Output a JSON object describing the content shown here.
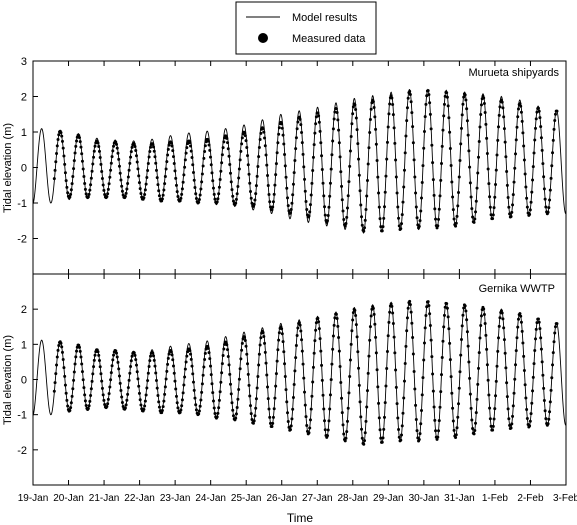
{
  "legend": {
    "model_label": "Model results",
    "measured_label": "Measured data"
  },
  "xlabel": "Time",
  "colors": {
    "line": "#000000",
    "marker": "#000000",
    "background": "#ffffff"
  },
  "chart_data": [
    {
      "type": "line",
      "annotation": "Murueta shipyards",
      "xlabel": "Time",
      "ylabel": "Tidal elevation (m)",
      "ylim": [
        -3,
        3
      ],
      "yticks": [
        -2,
        -1,
        0,
        1,
        2,
        3
      ],
      "xlim": [
        "19-Jan",
        "3-Feb"
      ],
      "xticks": [
        "19-Jan",
        "20-Jan",
        "21-Jan",
        "22-Jan",
        "23-Jan",
        "24-Jan",
        "25-Jan",
        "26-Jan",
        "27-Jan",
        "28-Jan",
        "29-Jan",
        "30-Jan",
        "31-Jan",
        "1-Feb",
        "2-Feb",
        "3-Feb"
      ],
      "measured_range_days": [
        0.6,
        14.75
      ],
      "series": [
        {
          "name": "Model results",
          "style": "line",
          "high_water_m": [
            1.18,
            1.0,
            1.05,
            0.85,
            0.8,
            0.75,
            0.75,
            0.85,
            0.95,
            1.0,
            1.05,
            1.15,
            1.25,
            1.45,
            1.55,
            1.65,
            1.75,
            1.9,
            2.0,
            2.05,
            2.2,
            2.2,
            2.2,
            2.15,
            2.1,
            2.05,
            1.95,
            1.85,
            1.6
          ],
          "low_water_m": [
            -1.05,
            -1.0,
            -0.9,
            -0.85,
            -0.8,
            -0.85,
            -0.85,
            -0.9,
            -0.95,
            -1.0,
            -1.05,
            -1.1,
            -1.2,
            -1.3,
            -1.45,
            -1.55,
            -1.65,
            -1.75,
            -1.85,
            -1.8,
            -1.75,
            -1.75,
            -1.7,
            -1.65,
            -1.55,
            -1.45,
            -1.4,
            -1.35,
            -1.3
          ]
        },
        {
          "name": "Measured data",
          "style": "markers",
          "high_water_m": [
            1.18,
            1.0,
            1.05,
            0.75,
            0.75,
            0.7,
            0.65,
            0.7,
            0.75,
            0.75,
            0.85,
            0.95,
            1.05,
            1.2,
            1.35,
            1.5,
            1.6,
            1.75,
            1.85,
            1.95,
            2.1,
            2.2,
            2.15,
            2.1,
            2.05,
            1.95,
            1.85,
            1.75,
            1.6
          ],
          "low_water_m": [
            -1.05,
            -0.9,
            -0.85,
            -0.85,
            -0.85,
            -0.85,
            -0.9,
            -0.95,
            -0.95,
            -1.0,
            -1.0,
            -1.05,
            -1.1,
            -1.2,
            -1.3,
            -1.4,
            -1.55,
            -1.65,
            -1.8,
            -1.8,
            -1.75,
            -1.7,
            -1.7,
            -1.65,
            -1.55,
            -1.45,
            -1.4,
            -1.35,
            -1.3
          ]
        }
      ]
    },
    {
      "type": "line",
      "annotation": "Gernika WWTP",
      "xlabel": "Time",
      "ylabel": "Tidal elevation (m)",
      "ylim": [
        -3,
        3
      ],
      "yticks": [
        -2,
        -1,
        0,
        1,
        2
      ],
      "xlim": [
        "19-Jan",
        "3-Feb"
      ],
      "xticks": [
        "19-Jan",
        "20-Jan",
        "21-Jan",
        "22-Jan",
        "23-Jan",
        "24-Jan",
        "25-Jan",
        "26-Jan",
        "27-Jan",
        "28-Jan",
        "29-Jan",
        "30-Jan",
        "31-Jan",
        "1-Feb",
        "2-Feb",
        "3-Feb"
      ],
      "measured_range_days": [
        0.6,
        14.75
      ],
      "series": [
        {
          "name": "Model results",
          "style": "line",
          "high_water_m": [
            1.18,
            1.05,
            1.1,
            0.9,
            0.85,
            0.8,
            0.8,
            0.9,
            1.0,
            1.05,
            1.15,
            1.3,
            1.4,
            1.55,
            1.65,
            1.75,
            1.85,
            2.0,
            2.1,
            2.15,
            2.25,
            2.25,
            2.2,
            2.15,
            2.1,
            2.05,
            1.95,
            1.85,
            1.6
          ],
          "low_water_m": [
            -1.05,
            -1.0,
            -0.9,
            -0.85,
            -0.8,
            -0.85,
            -0.85,
            -0.9,
            -0.95,
            -1.0,
            -1.1,
            -1.15,
            -1.25,
            -1.35,
            -1.45,
            -1.55,
            -1.65,
            -1.75,
            -1.85,
            -1.8,
            -1.75,
            -1.75,
            -1.7,
            -1.65,
            -1.55,
            -1.45,
            -1.4,
            -1.35,
            -1.3
          ]
        },
        {
          "name": "Measured data",
          "style": "markers",
          "high_water_m": [
            1.18,
            1.05,
            1.1,
            0.85,
            0.85,
            0.8,
            0.75,
            0.8,
            0.85,
            0.9,
            1.0,
            1.15,
            1.3,
            1.45,
            1.55,
            1.7,
            1.8,
            1.95,
            2.05,
            2.1,
            2.2,
            2.25,
            2.2,
            2.15,
            2.1,
            2.0,
            1.9,
            1.85,
            1.6
          ],
          "low_water_m": [
            -1.05,
            -0.95,
            -0.9,
            -0.85,
            -0.8,
            -0.85,
            -0.9,
            -0.95,
            -0.95,
            -1.0,
            -1.1,
            -1.15,
            -1.25,
            -1.35,
            -1.45,
            -1.55,
            -1.65,
            -1.75,
            -1.85,
            -1.8,
            -1.75,
            -1.75,
            -1.7,
            -1.65,
            -1.55,
            -1.45,
            -1.4,
            -1.35,
            -1.3
          ]
        }
      ]
    }
  ]
}
